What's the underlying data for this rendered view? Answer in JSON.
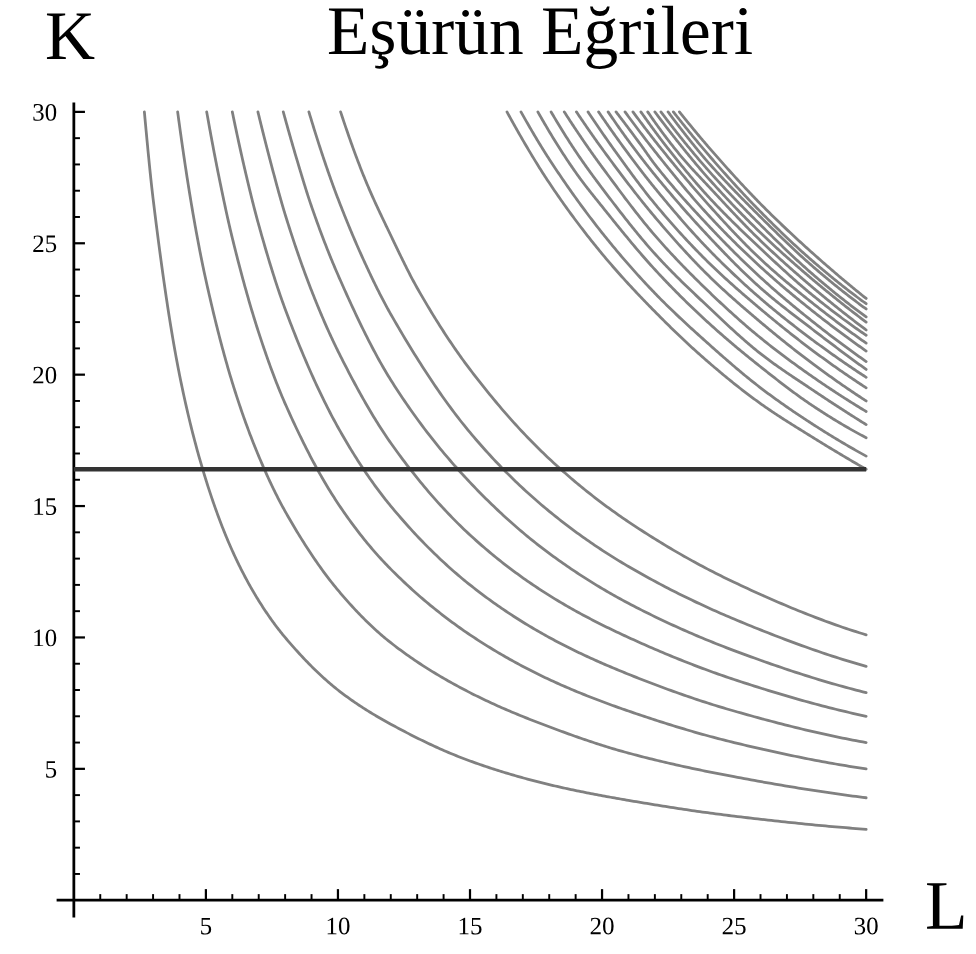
{
  "chart_data": {
    "type": "line",
    "title": "Eşürün Eğrileri",
    "xlabel": "L",
    "ylabel": "K",
    "xlim": [
      -0.6,
      30.6
    ],
    "ylim": [
      -0.6,
      30.3
    ],
    "xticks": [
      {
        "value": 1,
        "label": null
      },
      {
        "value": 2,
        "label": null
      },
      {
        "value": 3,
        "label": null
      },
      {
        "value": 4,
        "label": null
      },
      5,
      {
        "value": 6,
        "label": null
      },
      {
        "value": 7,
        "label": null
      },
      {
        "value": 8,
        "label": null
      },
      {
        "value": 9,
        "label": null
      },
      10,
      {
        "value": 11,
        "label": null
      },
      {
        "value": 12,
        "label": null
      },
      {
        "value": 13,
        "label": null
      },
      {
        "value": 14,
        "label": null
      },
      15,
      {
        "value": 16,
        "label": null
      },
      {
        "value": 17,
        "label": null
      },
      {
        "value": 18,
        "label": null
      },
      {
        "value": 19,
        "label": null
      },
      20,
      {
        "value": 21,
        "label": null
      },
      {
        "value": 22,
        "label": null
      },
      {
        "value": 23,
        "label": null
      },
      {
        "value": 24,
        "label": null
      },
      25,
      {
        "value": 26,
        "label": null
      },
      {
        "value": 27,
        "label": null
      },
      {
        "value": 28,
        "label": null
      },
      {
        "value": 29,
        "label": null
      },
      30
    ],
    "yticks": [
      {
        "value": 1,
        "label": null
      },
      {
        "value": 2,
        "label": null
      },
      {
        "value": 3,
        "label": null
      },
      {
        "value": 4,
        "label": null
      },
      5,
      {
        "value": 6,
        "label": null
      },
      {
        "value": 7,
        "label": null
      },
      {
        "value": 8,
        "label": null
      },
      {
        "value": 9,
        "label": null
      },
      10,
      {
        "value": 11,
        "label": null
      },
      {
        "value": 12,
        "label": null
      },
      {
        "value": 13,
        "label": null
      },
      {
        "value": 14,
        "label": null
      },
      15,
      {
        "value": 16,
        "label": null
      },
      {
        "value": 17,
        "label": null
      },
      {
        "value": 18,
        "label": null
      },
      {
        "value": 19,
        "label": null
      },
      20,
      {
        "value": 21,
        "label": null
      },
      {
        "value": 22,
        "label": null
      },
      {
        "value": 23,
        "label": null
      },
      {
        "value": 24,
        "label": null
      },
      25,
      {
        "value": 26,
        "label": null
      },
      {
        "value": 27,
        "label": null
      },
      {
        "value": 28,
        "label": null
      },
      {
        "value": 29,
        "label": null
      },
      30
    ],
    "ref_lines": [
      {
        "axis": "y",
        "value": 16.4,
        "color": "#333333"
      }
    ],
    "series": [
      {
        "color": "#808080",
        "x": [
          2.67,
          3,
          4,
          5,
          6,
          7,
          8,
          10,
          12,
          15,
          18,
          21,
          25,
          30
        ],
        "values": [
          30,
          26.7,
          20,
          16,
          13.3,
          11.4,
          10,
          8,
          6.7,
          5.3,
          4.4,
          3.8,
          3.2,
          2.7
        ]
      },
      {
        "color": "#808080",
        "x": [
          3.93,
          4.5,
          5,
          6,
          7,
          8,
          10,
          12,
          15,
          18,
          21,
          25,
          30
        ],
        "values": [
          30,
          26.2,
          23.6,
          19.7,
          16.9,
          14.8,
          11.8,
          9.8,
          7.9,
          6.6,
          5.6,
          4.7,
          3.9
        ]
      },
      {
        "color": "#808080",
        "x": [
          5.03,
          5.5,
          6,
          7,
          8,
          10,
          12,
          15,
          18,
          21,
          25,
          30
        ],
        "values": [
          30,
          27.5,
          25.2,
          21.6,
          18.9,
          15.1,
          12.6,
          10.1,
          8.4,
          7.2,
          6.0,
          5.0
        ]
      },
      {
        "color": "#808080",
        "x": [
          6,
          6.5,
          7,
          8,
          10,
          12,
          15,
          18,
          21,
          25,
          30
        ],
        "values": [
          30,
          27.7,
          25.7,
          22.5,
          18,
          15,
          12,
          10,
          8.6,
          7.2,
          6
        ]
      },
      {
        "color": "#808080",
        "x": [
          6.97,
          7.5,
          8,
          9,
          10,
          12,
          15,
          18,
          21,
          25,
          30
        ],
        "values": [
          30,
          27.9,
          26.1,
          23.2,
          20.9,
          17.4,
          13.9,
          11.6,
          10.0,
          8.4,
          7.0
        ]
      },
      {
        "color": "#808080",
        "x": [
          7.93,
          8.5,
          9,
          10,
          12,
          15,
          18,
          21,
          25,
          30
        ],
        "values": [
          30,
          28.0,
          26.4,
          23.8,
          19.8,
          15.9,
          13.2,
          11.3,
          9.5,
          7.9
        ]
      },
      {
        "color": "#808080",
        "x": [
          8.9,
          9.5,
          10,
          11,
          12,
          15,
          18,
          21,
          25,
          30
        ],
        "values": [
          30,
          28.1,
          26.7,
          24.3,
          22.3,
          17.8,
          14.8,
          12.7,
          10.7,
          8.9
        ]
      },
      {
        "color": "#808080",
        "x": [
          10.1,
          11,
          12,
          13,
          15,
          18,
          21,
          25,
          30
        ],
        "values": [
          30,
          27.5,
          25.3,
          23.3,
          20.2,
          16.8,
          14.4,
          12.1,
          10.1
        ]
      },
      {
        "color": "#808080",
        "x": [
          16.4,
          18,
          20,
          22,
          24,
          26,
          28,
          30
        ],
        "values": [
          30,
          27.3,
          24.6,
          22.4,
          20.5,
          18.9,
          17.6,
          16.4
        ]
      },
      {
        "color": "#808080",
        "x": [
          16.93,
          18,
          20,
          22,
          24,
          26,
          28,
          30
        ],
        "values": [
          30,
          28.2,
          25.4,
          23.1,
          21.2,
          19.5,
          18.1,
          16.9
        ]
      },
      {
        "color": "#808080",
        "x": [
          17.57,
          19,
          20,
          22,
          24,
          26,
          28,
          30
        ],
        "values": [
          30,
          27.7,
          26.4,
          24.0,
          22.0,
          20.3,
          18.8,
          17.6
        ]
      },
      {
        "color": "#808080",
        "x": [
          18.07,
          19,
          20,
          22,
          24,
          26,
          28,
          30
        ],
        "values": [
          30,
          28.5,
          27.1,
          24.6,
          22.6,
          20.8,
          19.4,
          18.1
        ]
      },
      {
        "color": "#808080",
        "x": [
          18.57,
          19.5,
          20,
          22,
          24,
          26,
          28,
          30
        ],
        "values": [
          30,
          28.6,
          27.9,
          25.3,
          23.2,
          21.4,
          19.9,
          18.6
        ]
      },
      {
        "color": "#808080",
        "x": [
          19.03,
          20,
          22,
          24,
          26,
          28,
          30
        ],
        "values": [
          30,
          28.6,
          26.0,
          23.8,
          22.0,
          20.4,
          19.0
        ]
      },
      {
        "color": "#808080",
        "x": [
          19.47,
          20.5,
          22,
          24,
          26,
          28,
          30
        ],
        "values": [
          30,
          28.5,
          26.5,
          24.3,
          22.5,
          20.9,
          19.5
        ]
      },
      {
        "color": "#808080",
        "x": [
          19.87,
          21,
          22,
          24,
          26,
          28,
          30
        ],
        "values": [
          30,
          28.4,
          27.1,
          24.8,
          22.9,
          21.3,
          19.9
        ]
      },
      {
        "color": "#808080",
        "x": [
          20.23,
          21,
          22,
          24,
          26,
          28,
          30
        ],
        "values": [
          30,
          28.9,
          27.6,
          25.3,
          23.3,
          21.7,
          20.2
        ]
      },
      {
        "color": "#808080",
        "x": [
          20.53,
          21.5,
          22,
          24,
          26,
          28,
          30
        ],
        "values": [
          30,
          28.7,
          28.0,
          25.7,
          23.7,
          22.0,
          20.5
        ]
      },
      {
        "color": "#808080",
        "x": [
          20.87,
          22,
          24,
          26,
          28,
          30
        ],
        "values": [
          30,
          28.5,
          26.1,
          24.1,
          22.4,
          20.9
        ]
      },
      {
        "color": "#808080",
        "x": [
          21.17,
          22,
          24,
          26,
          28,
          30
        ],
        "values": [
          30,
          28.9,
          26.5,
          24.4,
          22.7,
          21.2
        ]
      },
      {
        "color": "#808080",
        "x": [
          21.47,
          22.5,
          24,
          26,
          28,
          30
        ],
        "values": [
          30,
          28.6,
          26.8,
          24.8,
          23.0,
          21.5
        ]
      },
      {
        "color": "#808080",
        "x": [
          21.73,
          23,
          24,
          26,
          28,
          30
        ],
        "values": [
          30,
          28.3,
          27.2,
          25.1,
          23.3,
          21.7
        ]
      },
      {
        "color": "#808080",
        "x": [
          22,
          23,
          24,
          26,
          28,
          30
        ],
        "values": [
          30,
          28.7,
          27.5,
          25.4,
          23.6,
          22.0
        ]
      },
      {
        "color": "#808080",
        "x": [
          22.23,
          23,
          24,
          26,
          28,
          30
        ],
        "values": [
          30,
          29.0,
          27.8,
          25.7,
          23.8,
          22.2
        ]
      },
      {
        "color": "#808080",
        "x": [
          22.5,
          23.5,
          24,
          26,
          28,
          30
        ],
        "values": [
          30,
          28.7,
          28.1,
          26.0,
          24.1,
          22.5
        ]
      },
      {
        "color": "#808080",
        "x": [
          22.7,
          24,
          26,
          28,
          30
        ],
        "values": [
          30,
          28.4,
          26.2,
          24.3,
          22.7
        ]
      },
      {
        "color": "#808080",
        "x": [
          22.93,
          24,
          26,
          28,
          30
        ],
        "values": [
          30,
          28.7,
          26.5,
          24.6,
          22.9
        ]
      }
    ]
  }
}
